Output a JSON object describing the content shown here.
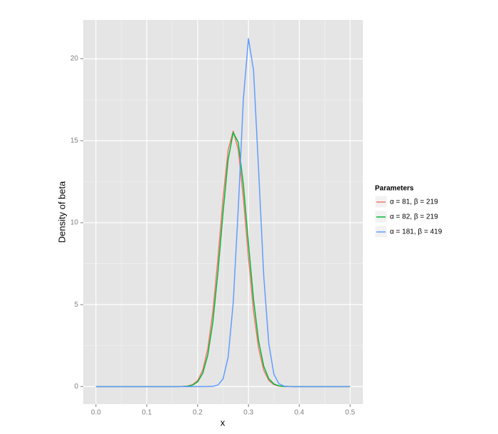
{
  "chart_data": {
    "type": "line",
    "x_label": "x",
    "y_label": "Density of beta",
    "legend_title": "Parameters",
    "legend_position": "right",
    "x": [
      0,
      0.1,
      0.15,
      0.16,
      0.17,
      0.18,
      0.19,
      0.2,
      0.21,
      0.22,
      0.23,
      0.24,
      0.25,
      0.26,
      0.27,
      0.28,
      0.29,
      0.3,
      0.31,
      0.32,
      0.33,
      0.34,
      0.35,
      0.36,
      0.37,
      0.38,
      0.39,
      0.4,
      0.45,
      0.5
    ],
    "series": [
      {
        "name": "α = 81, β = 219",
        "color": "#f8766d",
        "values": [
          0,
          0,
          0,
          0.0015,
          0.0075,
          0.032,
          0.118,
          0.37,
          1.0,
          2.31,
          4.59,
          7.84,
          11.49,
          14.44,
          15.59,
          14.44,
          11.49,
          7.84,
          4.59,
          2.31,
          1.0,
          0.37,
          0.118,
          0.032,
          0.0075,
          0.0015,
          0.0003,
          0,
          0,
          0
        ]
      },
      {
        "name": "α = 82, β = 219",
        "color": "#00ba38",
        "values": [
          0,
          0,
          0,
          0.001,
          0.0053,
          0.023,
          0.088,
          0.286,
          0.8,
          1.92,
          3.95,
          6.99,
          10.61,
          13.84,
          15.5,
          14.9,
          12.31,
          8.73,
          5.31,
          2.78,
          1.25,
          0.48,
          0.159,
          0.045,
          0.011,
          0.0023,
          0.0004,
          0,
          0,
          0
        ]
      },
      {
        "name": "α = 181, β = 419",
        "color": "#619cff",
        "values": [
          0,
          0,
          0,
          0,
          0,
          0,
          0,
          0,
          0.0001,
          0.0016,
          0.014,
          0.094,
          0.47,
          1.79,
          5.1,
          10.9,
          17.55,
          21.23,
          19.3,
          13.19,
          6.78,
          2.62,
          0.76,
          0.17,
          0.027,
          0.0034,
          0.0003,
          0,
          0,
          0
        ]
      }
    ],
    "xlim": [
      -0.025,
      0.525
    ],
    "xticks": [
      {
        "value": 0,
        "label": "0.0"
      },
      0.1,
      0.2,
      0.3,
      0.4,
      0.5
    ],
    "ylim": [
      -1.07,
      22.37
    ],
    "yticks": [
      0,
      5,
      10,
      15,
      20
    ],
    "grid": true
  }
}
